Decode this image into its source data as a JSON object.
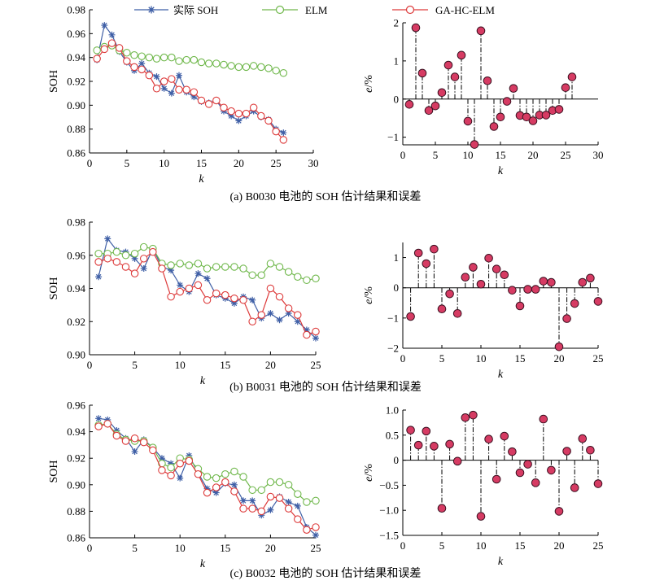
{
  "colors": {
    "actual": "#3f5fa6",
    "elm": "#70b84c",
    "gahc": "#dd3b3b",
    "err_fill": "#d63b63",
    "err_stroke": "#3a1020"
  },
  "legend": [
    "实际 SOH",
    "ELM",
    "GA-HC-ELM"
  ],
  "captions": [
    "(a) B0030 电池的 SOH 估计结果和误差",
    "(b) B0031 电池的 SOH 估计结果和误差",
    "(c) B0032 电池的 SOH 估计结果和误差"
  ],
  "chart_data": [
    {
      "type": "line",
      "xlabel": "k",
      "ylabel": "SOH",
      "xlim": [
        0,
        30
      ],
      "ylim": [
        0.86,
        0.98
      ],
      "xticks": [
        "0",
        "5",
        "10",
        "15",
        "20",
        "25",
        "30"
      ],
      "yticks": [
        "0.86",
        "0.88",
        "0.90",
        "0.92",
        "0.94",
        "0.96",
        "0.98"
      ],
      "x": [
        1,
        2,
        3,
        4,
        5,
        6,
        7,
        8,
        9,
        10,
        11,
        12,
        13,
        14,
        15,
        16,
        17,
        18,
        19,
        20,
        21,
        22,
        23,
        24,
        25,
        26
      ],
      "series": [
        {
          "name": "实际 SOH",
          "values": [
            0.938,
            0.967,
            0.959,
            0.945,
            0.936,
            0.929,
            0.935,
            0.927,
            0.924,
            0.914,
            0.91,
            0.925,
            0.911,
            0.907,
            0.903,
            0.902,
            0.904,
            0.895,
            0.891,
            0.887,
            0.891,
            0.895,
            0.89,
            0.888,
            0.88,
            0.877
          ]
        },
        {
          "name": "ELM",
          "values": [
            0.946,
            0.949,
            0.95,
            0.946,
            0.944,
            0.942,
            0.941,
            0.94,
            0.939,
            0.94,
            0.94,
            0.937,
            0.938,
            0.938,
            0.936,
            0.935,
            0.935,
            0.934,
            0.933,
            0.932,
            0.932,
            0.933,
            0.932,
            0.931,
            0.929,
            0.927
          ]
        },
        {
          "name": "GA-HC-ELM",
          "values": [
            0.939,
            0.947,
            0.952,
            0.948,
            0.937,
            0.932,
            0.93,
            0.925,
            0.914,
            0.92,
            0.922,
            0.913,
            0.913,
            0.911,
            0.904,
            0.901,
            0.904,
            0.898,
            0.895,
            0.893,
            0.893,
            0.898,
            0.891,
            0.887,
            0.878,
            0.871
          ]
        }
      ]
    },
    {
      "type": "scatter",
      "xlabel": "k",
      "ylabel": "e/%",
      "xlim": [
        0,
        30
      ],
      "ylim": [
        -1.2,
        2
      ],
      "xticks": [
        "0",
        "5",
        "10",
        "15",
        "20",
        "25",
        "30"
      ],
      "yticks": [
        "−1",
        "0",
        "1",
        "2"
      ],
      "x": [
        1,
        2,
        3,
        4,
        5,
        6,
        7,
        8,
        9,
        10,
        11,
        12,
        13,
        14,
        15,
        16,
        17,
        18,
        19,
        20,
        21,
        22,
        23,
        24,
        25,
        26
      ],
      "values": [
        -0.14,
        1.87,
        0.68,
        -0.3,
        -0.18,
        0.17,
        0.89,
        0.58,
        1.15,
        -0.58,
        -1.19,
        1.79,
        0.48,
        -0.72,
        -0.47,
        -0.06,
        0.28,
        -0.43,
        -0.47,
        -0.57,
        -0.42,
        -0.42,
        -0.3,
        -0.27,
        0.3,
        0.58
      ]
    },
    {
      "type": "line",
      "xlabel": "k",
      "ylabel": "SOH",
      "xlim": [
        0,
        25
      ],
      "ylim": [
        0.9,
        0.98
      ],
      "xticks": [
        "0",
        "5",
        "10",
        "15",
        "20",
        "25"
      ],
      "yticks": [
        "0.90",
        "0.92",
        "0.94",
        "0.96",
        "0.98"
      ],
      "x": [
        1,
        2,
        3,
        4,
        5,
        6,
        7,
        8,
        9,
        10,
        11,
        12,
        13,
        14,
        15,
        16,
        17,
        18,
        19,
        20,
        21,
        22,
        23,
        24,
        25
      ],
      "series": [
        {
          "name": "实际 SOH",
          "values": [
            0.947,
            0.97,
            0.963,
            0.962,
            0.958,
            0.952,
            0.964,
            0.953,
            0.951,
            0.942,
            0.938,
            0.949,
            0.946,
            0.936,
            0.934,
            0.931,
            0.935,
            0.933,
            0.922,
            0.925,
            0.921,
            0.925,
            0.92,
            0.915,
            0.91
          ]
        },
        {
          "name": "ELM",
          "values": [
            0.961,
            0.961,
            0.962,
            0.96,
            0.961,
            0.965,
            0.964,
            0.955,
            0.954,
            0.955,
            0.954,
            0.955,
            0.952,
            0.953,
            0.953,
            0.953,
            0.952,
            0.948,
            0.948,
            0.955,
            0.953,
            0.95,
            0.947,
            0.945,
            0.946
          ]
        },
        {
          "name": "GA-HC-ELM",
          "values": [
            0.956,
            0.958,
            0.956,
            0.953,
            0.949,
            0.958,
            0.962,
            0.952,
            0.935,
            0.938,
            0.94,
            0.942,
            0.933,
            0.937,
            0.936,
            0.934,
            0.933,
            0.92,
            0.924,
            0.94,
            0.935,
            0.928,
            0.924,
            0.912,
            0.914
          ]
        }
      ]
    },
    {
      "type": "scatter",
      "xlabel": "k",
      "ylabel": "e/%",
      "xlim": [
        0,
        25
      ],
      "ylim": [
        -2,
        1.5
      ],
      "xticks": [
        "0",
        "5",
        "10",
        "15",
        "20",
        "25"
      ],
      "yticks": [
        "−2",
        "−1",
        "0",
        "1"
      ],
      "x": [
        1,
        2,
        3,
        4,
        5,
        6,
        7,
        8,
        9,
        10,
        11,
        12,
        13,
        14,
        15,
        16,
        17,
        18,
        19,
        20,
        21,
        22,
        23,
        24,
        25
      ],
      "values": [
        -0.95,
        1.15,
        0.8,
        1.28,
        -0.7,
        -0.2,
        -0.85,
        0.35,
        0.68,
        0.12,
        0.98,
        0.62,
        0.43,
        -0.08,
        -0.6,
        -0.05,
        -0.05,
        0.22,
        0.18,
        -1.95,
        -1.02,
        -0.52,
        0.18,
        0.32,
        -0.45
      ]
    },
    {
      "type": "line",
      "xlabel": "k",
      "ylabel": "SOH",
      "xlim": [
        0,
        25
      ],
      "ylim": [
        0.86,
        0.96
      ],
      "xticks": [
        "0",
        "5",
        "10",
        "15",
        "20",
        "25"
      ],
      "yticks": [
        "0.86",
        "0.88",
        "0.90",
        "0.92",
        "0.94",
        "0.96"
      ],
      "x": [
        1,
        2,
        3,
        4,
        5,
        6,
        7,
        8,
        9,
        10,
        11,
        12,
        13,
        14,
        15,
        16,
        17,
        18,
        19,
        20,
        21,
        22,
        23,
        24,
        25
      ],
      "series": [
        {
          "name": "实际 SOH",
          "values": [
            0.95,
            0.949,
            0.941,
            0.935,
            0.925,
            0.934,
            0.928,
            0.92,
            0.916,
            0.905,
            0.922,
            0.909,
            0.897,
            0.894,
            0.901,
            0.9,
            0.888,
            0.888,
            0.877,
            0.881,
            0.891,
            0.887,
            0.884,
            0.868,
            0.862
          ]
        },
        {
          "name": "ELM",
          "values": [
            0.945,
            0.946,
            0.938,
            0.934,
            0.933,
            0.933,
            0.928,
            0.916,
            0.913,
            0.92,
            0.919,
            0.912,
            0.906,
            0.905,
            0.908,
            0.91,
            0.906,
            0.896,
            0.896,
            0.902,
            0.902,
            0.9,
            0.893,
            0.887,
            0.888
          ]
        },
        {
          "name": "GA-HC-ELM",
          "values": [
            0.944,
            0.946,
            0.937,
            0.933,
            0.935,
            0.932,
            0.926,
            0.911,
            0.907,
            0.916,
            0.918,
            0.908,
            0.894,
            0.898,
            0.902,
            0.895,
            0.882,
            0.882,
            0.88,
            0.891,
            0.89,
            0.882,
            0.874,
            0.866,
            0.868
          ]
        }
      ]
    },
    {
      "type": "scatter",
      "xlabel": "k",
      "ylabel": "e/%",
      "xlim": [
        0,
        25
      ],
      "ylim": [
        -1.5,
        1.0
      ],
      "xticks": [
        "0",
        "5",
        "10",
        "15",
        "20",
        "25"
      ],
      "yticks": [
        "−1.5",
        "−1.0",
        "−0.5",
        "0",
        "0.5",
        "1.0"
      ],
      "x": [
        1,
        2,
        3,
        4,
        5,
        6,
        7,
        8,
        9,
        10,
        11,
        12,
        13,
        14,
        15,
        16,
        17,
        18,
        19,
        20,
        21,
        22,
        23,
        24,
        25
      ],
      "values": [
        0.6,
        0.3,
        0.58,
        0.28,
        -0.96,
        0.32,
        -0.02,
        0.85,
        0.9,
        -1.12,
        0.42,
        -0.38,
        0.48,
        0.17,
        -0.25,
        -0.08,
        -0.45,
        0.82,
        -0.2,
        -1.02,
        0.18,
        -0.55,
        0.43,
        0.2,
        -0.47
      ]
    }
  ]
}
